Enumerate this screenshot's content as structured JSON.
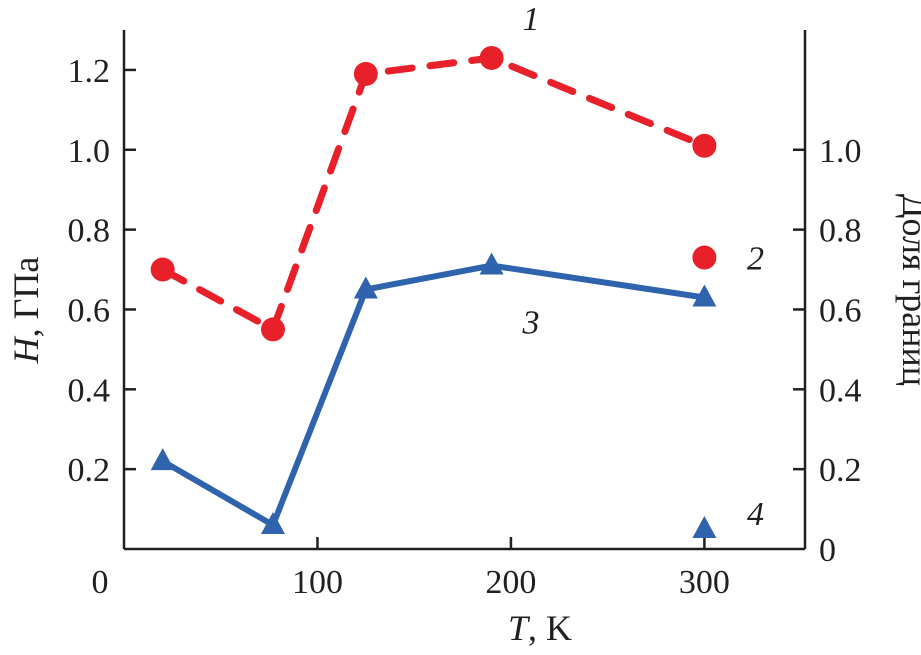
{
  "chart_data": {
    "type": "line",
    "title": "",
    "xlabel_var": "T",
    "xlabel_unit": ", K",
    "ylabel_var": "H",
    "ylabel_unit": ", ГПа",
    "y2label": "Доля границ",
    "xlim": [
      0,
      352
    ],
    "ylim": [
      0,
      1.3
    ],
    "y2lim": [
      0,
      1.3
    ],
    "xticks": [
      0,
      100,
      200,
      300
    ],
    "xtick_labels": [
      "0",
      "100",
      "200",
      "300"
    ],
    "yticks": [
      0.2,
      0.4,
      0.6,
      0.8,
      1.0,
      1.2
    ],
    "ytick_labels": [
      "0.2",
      "0.4",
      "0.6",
      "0.8",
      "1.0",
      "1.2"
    ],
    "y2ticks": [
      0,
      0.2,
      0.4,
      0.6,
      0.8,
      1.0
    ],
    "y2tick_labels": [
      "0",
      "0.2",
      "0.4",
      "0.6",
      "0.8",
      "1.0"
    ],
    "grid": false,
    "series": [
      {
        "name": "1",
        "label": "1",
        "axis": "left",
        "marker": "circle",
        "line": "dashed",
        "color": "#e8202a",
        "x": [
          20,
          77,
          125,
          190,
          300
        ],
        "y": [
          0.7,
          0.55,
          1.19,
          1.23,
          1.01
        ],
        "label_at": [
          206,
          1.33
        ]
      },
      {
        "name": "2",
        "label": "2",
        "axis": "left",
        "marker": "circle",
        "line": "none",
        "color": "#e8202a",
        "x": [
          300
        ],
        "y": [
          0.73
        ],
        "label_at": [
          322,
          0.73
        ]
      },
      {
        "name": "3",
        "label": "3",
        "axis": "right",
        "marker": "triangle",
        "line": "solid",
        "color": "#2f63ae",
        "x": [
          20,
          77,
          125,
          190,
          300
        ],
        "y": [
          0.22,
          0.06,
          0.65,
          0.71,
          0.63
        ],
        "label_at": [
          206,
          0.57
        ]
      },
      {
        "name": "4",
        "label": "4",
        "axis": "right",
        "marker": "triangle",
        "line": "none",
        "color": "#2f63ae",
        "x": [
          300
        ],
        "y": [
          0.05
        ],
        "label_at": [
          322,
          0.09
        ]
      }
    ]
  }
}
